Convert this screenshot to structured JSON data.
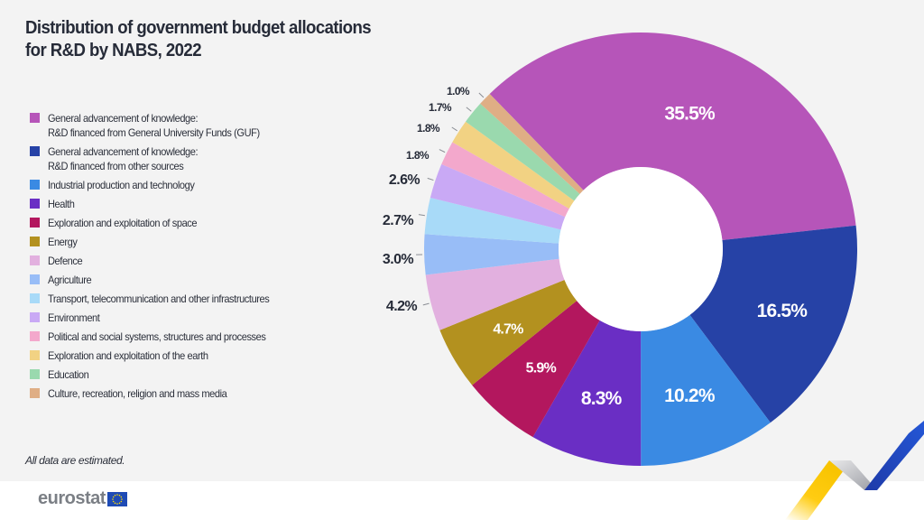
{
  "title_line1": "Distribution of government budget allocations",
  "title_line2": "for R&D by NABS, 2022",
  "footnote": "All data are estimated.",
  "logo": {
    "text": "eurostat",
    "flag_icon": "eu-flag-icon"
  },
  "chart_data": {
    "type": "pie",
    "variant": "donut",
    "title": "Distribution of government budget allocations for R&D by NABS, 2022",
    "unit": "%",
    "legend_position": "left",
    "slices": [
      {
        "label": "General advancement of knowledge:\nR&D financed from General University Funds (GUF)",
        "value": 35.5,
        "display": "35.5%",
        "color": "#b655b9",
        "label_inside": true
      },
      {
        "label": "General advancement of knowledge:\nR&D financed from other sources",
        "value": 16.5,
        "display": "16.5%",
        "color": "#2642a6",
        "label_inside": true
      },
      {
        "label": "Industrial production and technology",
        "value": 10.2,
        "display": "10.2%",
        "color": "#3a8ae3",
        "label_inside": true
      },
      {
        "label": "Health",
        "value": 8.3,
        "display": "8.3%",
        "color": "#6a2ec4",
        "label_inside": true
      },
      {
        "label": "Exploration and exploitation of space",
        "value": 5.9,
        "display": "5.9%",
        "color": "#b3175e",
        "label_inside": true
      },
      {
        "label": "Energy",
        "value": 4.7,
        "display": "4.7%",
        "color": "#b3911f",
        "label_inside": true
      },
      {
        "label": "Defence",
        "value": 4.2,
        "display": "4.2%",
        "color": "#e2b0df",
        "label_inside": false
      },
      {
        "label": "Agriculture",
        "value": 3.0,
        "display": "3.0%",
        "color": "#98bdf7",
        "label_inside": false
      },
      {
        "label": "Transport, telecommunication and other infrastructures",
        "value": 2.7,
        "display": "2.7%",
        "color": "#a8daf8",
        "label_inside": false
      },
      {
        "label": "Environment",
        "value": 2.6,
        "display": "2.6%",
        "color": "#c9a9f5",
        "label_inside": false
      },
      {
        "label": "Political and social systems, structures and processes",
        "value": 1.8,
        "display": "1.8%",
        "color": "#f3a8cc",
        "label_inside": false
      },
      {
        "label": "Exploration and exploitation of the earth",
        "value": 1.8,
        "display": "1.8%",
        "color": "#f2d283",
        "label_inside": false
      },
      {
        "label": "Education",
        "value": 1.7,
        "display": "1.7%",
        "color": "#9ad9ae",
        "label_inside": false
      },
      {
        "label": "Culture, recreation, religion and mass media",
        "value": 1.0,
        "display": "1.0%",
        "color": "#dfae85",
        "label_inside": false
      }
    ]
  }
}
